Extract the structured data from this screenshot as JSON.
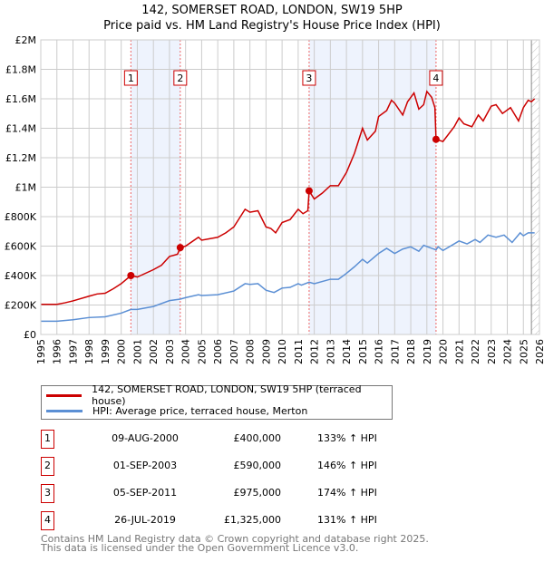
{
  "chart_data": {
    "type": "line",
    "title": "142, SOMERSET ROAD, LONDON, SW19 5HP",
    "subtitle": "Price paid vs. HM Land Registry's House Price Index (HPI)",
    "xlim": [
      1995,
      2026
    ],
    "ylim": [
      0,
      2000000
    ],
    "yticks": [
      {
        "v": 0,
        "label": "£0"
      },
      {
        "v": 200000,
        "label": "£200K"
      },
      {
        "v": 400000,
        "label": "£400K"
      },
      {
        "v": 600000,
        "label": "£600K"
      },
      {
        "v": 800000,
        "label": "£800K"
      },
      {
        "v": 1000000,
        "label": "£1M"
      },
      {
        "v": 1200000,
        "label": "£1.2M"
      },
      {
        "v": 1400000,
        "label": "£1.4M"
      },
      {
        "v": 1600000,
        "label": "£1.6M"
      },
      {
        "v": 1800000,
        "label": "£1.8M"
      },
      {
        "v": 2000000,
        "label": "£2M"
      }
    ],
    "xticks": [
      "1995",
      "1996",
      "1997",
      "1998",
      "1999",
      "2000",
      "2001",
      "2002",
      "2003",
      "2004",
      "2005",
      "2006",
      "2007",
      "2008",
      "2009",
      "2010",
      "2011",
      "2012",
      "2013",
      "2014",
      "2015",
      "2016",
      "2017",
      "2018",
      "2019",
      "2020",
      "2021",
      "2022",
      "2023",
      "2024",
      "2025",
      "2026"
    ],
    "grid": true,
    "series": [
      {
        "name": "142, SOMERSET ROAD, LONDON, SW19 5HP (terraced house)",
        "color": "#cc0000",
        "points": [
          [
            1995,
            205000
          ],
          [
            1996,
            205000
          ],
          [
            1996.5,
            215000
          ],
          [
            1997,
            228000
          ],
          [
            1998,
            260000
          ],
          [
            1998.5,
            275000
          ],
          [
            1999,
            280000
          ],
          [
            1999.5,
            310000
          ],
          [
            2000,
            345000
          ],
          [
            2000.6,
            400000
          ],
          [
            2001,
            390000
          ],
          [
            2002,
            440000
          ],
          [
            2002.5,
            470000
          ],
          [
            2003,
            530000
          ],
          [
            2003.5,
            545000
          ],
          [
            2003.67,
            590000
          ],
          [
            2004,
            600000
          ],
          [
            2004.8,
            660000
          ],
          [
            2005,
            640000
          ],
          [
            2006,
            660000
          ],
          [
            2006.5,
            690000
          ],
          [
            2007,
            730000
          ],
          [
            2007.7,
            850000
          ],
          [
            2008,
            830000
          ],
          [
            2008.5,
            840000
          ],
          [
            2009,
            730000
          ],
          [
            2009.3,
            720000
          ],
          [
            2009.6,
            690000
          ],
          [
            2010,
            760000
          ],
          [
            2010.5,
            780000
          ],
          [
            2011,
            850000
          ],
          [
            2011.3,
            820000
          ],
          [
            2011.6,
            840000
          ],
          [
            2011.68,
            975000
          ],
          [
            2012,
            920000
          ],
          [
            2012.5,
            960000
          ],
          [
            2013,
            1010000
          ],
          [
            2013.5,
            1010000
          ],
          [
            2014,
            1100000
          ],
          [
            2014.5,
            1230000
          ],
          [
            2015,
            1400000
          ],
          [
            2015.3,
            1320000
          ],
          [
            2015.8,
            1380000
          ],
          [
            2016,
            1480000
          ],
          [
            2016.5,
            1520000
          ],
          [
            2016.8,
            1590000
          ],
          [
            2017,
            1570000
          ],
          [
            2017.5,
            1490000
          ],
          [
            2017.8,
            1580000
          ],
          [
            2018.2,
            1640000
          ],
          [
            2018.5,
            1530000
          ],
          [
            2018.8,
            1560000
          ],
          [
            2019,
            1650000
          ],
          [
            2019.3,
            1610000
          ],
          [
            2019.5,
            1540000
          ],
          [
            2019.57,
            1325000
          ],
          [
            2020,
            1310000
          ],
          [
            2020.7,
            1410000
          ],
          [
            2021,
            1470000
          ],
          [
            2021.3,
            1430000
          ],
          [
            2021.8,
            1410000
          ],
          [
            2022.2,
            1490000
          ],
          [
            2022.5,
            1450000
          ],
          [
            2023,
            1550000
          ],
          [
            2023.3,
            1560000
          ],
          [
            2023.7,
            1500000
          ],
          [
            2024.2,
            1540000
          ],
          [
            2024.7,
            1450000
          ],
          [
            2025,
            1540000
          ],
          [
            2025.3,
            1590000
          ],
          [
            2025.5,
            1580000
          ],
          [
            2025.7,
            1600000
          ]
        ]
      },
      {
        "name": "HPI: Average price, terraced house, Merton",
        "color": "#5b8fd4",
        "points": [
          [
            1995,
            90000
          ],
          [
            1996,
            90000
          ],
          [
            1997,
            100000
          ],
          [
            1998,
            115000
          ],
          [
            1999,
            120000
          ],
          [
            2000,
            145000
          ],
          [
            2000.6,
            170000
          ],
          [
            2001,
            170000
          ],
          [
            2002,
            190000
          ],
          [
            2003,
            230000
          ],
          [
            2003.67,
            240000
          ],
          [
            2004,
            250000
          ],
          [
            2004.8,
            270000
          ],
          [
            2005,
            265000
          ],
          [
            2006,
            270000
          ],
          [
            2007,
            295000
          ],
          [
            2007.7,
            345000
          ],
          [
            2008,
            340000
          ],
          [
            2008.5,
            345000
          ],
          [
            2009,
            300000
          ],
          [
            2009.5,
            285000
          ],
          [
            2010,
            315000
          ],
          [
            2010.5,
            320000
          ],
          [
            2011,
            345000
          ],
          [
            2011.2,
            335000
          ],
          [
            2011.68,
            355000
          ],
          [
            2012,
            345000
          ],
          [
            2013,
            375000
          ],
          [
            2013.5,
            375000
          ],
          [
            2014,
            415000
          ],
          [
            2014.5,
            460000
          ],
          [
            2015,
            510000
          ],
          [
            2015.3,
            485000
          ],
          [
            2016,
            550000
          ],
          [
            2016.5,
            585000
          ],
          [
            2017,
            550000
          ],
          [
            2017.5,
            580000
          ],
          [
            2018,
            595000
          ],
          [
            2018.5,
            565000
          ],
          [
            2018.8,
            605000
          ],
          [
            2019.3,
            585000
          ],
          [
            2019.57,
            575000
          ],
          [
            2019.7,
            595000
          ],
          [
            2020,
            570000
          ],
          [
            2020.7,
            615000
          ],
          [
            2021,
            635000
          ],
          [
            2021.5,
            615000
          ],
          [
            2022,
            645000
          ],
          [
            2022.3,
            625000
          ],
          [
            2022.8,
            675000
          ],
          [
            2023.3,
            660000
          ],
          [
            2023.8,
            675000
          ],
          [
            2024.3,
            625000
          ],
          [
            2024.8,
            690000
          ],
          [
            2025,
            670000
          ],
          [
            2025.3,
            690000
          ],
          [
            2025.7,
            690000
          ]
        ]
      }
    ],
    "sales": [
      {
        "n": "1",
        "x": 2000.6,
        "y": 400000
      },
      {
        "n": "2",
        "x": 2003.67,
        "y": 590000
      },
      {
        "n": "3",
        "x": 2011.68,
        "y": 975000
      },
      {
        "n": "4",
        "x": 2019.57,
        "y": 1325000
      }
    ],
    "shaded": [
      [
        2000.6,
        2003.67
      ],
      [
        2011.68,
        2019.57
      ]
    ],
    "hatched_from": 2025.5,
    "legend_placement": "below"
  },
  "table": [
    {
      "n": "1",
      "date": "09-AUG-2000",
      "price": "£400,000",
      "hpi": "133% ↑ HPI"
    },
    {
      "n": "2",
      "date": "01-SEP-2003",
      "price": "£590,000",
      "hpi": "146% ↑ HPI"
    },
    {
      "n": "3",
      "date": "05-SEP-2011",
      "price": "£975,000",
      "hpi": "174% ↑ HPI"
    },
    {
      "n": "4",
      "date": "26-JUL-2019",
      "price": "£1,325,000",
      "hpi": "131% ↑ HPI"
    }
  ],
  "footer": [
    "Contains HM Land Registry data © Crown copyright and database right 2025.",
    "This data is licensed under the Open Government Licence v3.0."
  ]
}
